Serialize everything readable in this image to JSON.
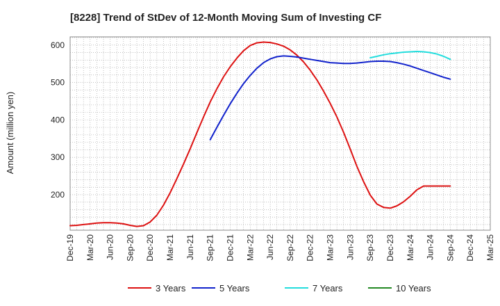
{
  "chart_data": {
    "type": "line",
    "title": "[8228]  Trend of StDev of 12-Month Moving Sum of Investing CF",
    "xlabel": "",
    "ylabel": "Amount (million yen)",
    "x_ticks": [
      "Dec-19",
      "Mar-20",
      "Jun-20",
      "Sep-20",
      "Dec-20",
      "Mar-21",
      "Jun-21",
      "Sep-21",
      "Dec-21",
      "Mar-22",
      "Jun-22",
      "Sep-22",
      "Dec-22",
      "Mar-23",
      "Jun-23",
      "Sep-23",
      "Dec-23",
      "Mar-24",
      "Jun-24",
      "Sep-24",
      "Dec-24",
      "Mar-25"
    ],
    "y_ticks": [
      200,
      300,
      400,
      500,
      600
    ],
    "ylim": [
      105,
      622
    ],
    "grid": true,
    "legend_position": "bottom",
    "series": [
      {
        "name": "3 Years",
        "color": "#dd1111",
        "x": [
          "Dec-19",
          "Jan-20",
          "Feb-20",
          "Mar-20",
          "Apr-20",
          "May-20",
          "Jun-20",
          "Jul-20",
          "Aug-20",
          "Sep-20",
          "Oct-20",
          "Nov-20",
          "Dec-20",
          "Jan-21",
          "Feb-21",
          "Mar-21",
          "Apr-21",
          "May-21",
          "Jun-21",
          "Jul-21",
          "Aug-21",
          "Sep-21",
          "Oct-21",
          "Nov-21",
          "Dec-21",
          "Jan-22",
          "Feb-22",
          "Mar-22",
          "Apr-22",
          "May-22",
          "Jun-22",
          "Jul-22",
          "Aug-22",
          "Sep-22",
          "Oct-22",
          "Nov-22",
          "Dec-22",
          "Jan-23",
          "Feb-23",
          "Mar-23",
          "Apr-23",
          "May-23",
          "Jun-23",
          "Jul-23",
          "Aug-23",
          "Sep-23",
          "Oct-23",
          "Nov-23",
          "Dec-23",
          "Jan-24",
          "Feb-24",
          "Mar-24",
          "Apr-24",
          "May-24",
          "Jun-24",
          "Jul-24",
          "Aug-24",
          "Sep-24"
        ],
        "values": [
          117,
          118,
          120,
          122,
          124,
          125,
          125,
          124,
          122,
          118,
          115,
          117,
          127,
          145,
          172,
          205,
          243,
          282,
          323,
          366,
          408,
          448,
          483,
          515,
          542,
          565,
          585,
          599,
          606,
          608,
          607,
          603,
          597,
          587,
          573,
          555,
          533,
          507,
          477,
          444,
          408,
          367,
          322,
          276,
          235,
          199,
          175,
          166,
          164,
          170,
          181,
          196,
          213,
          223,
          223,
          223,
          223,
          223
        ]
      },
      {
        "name": "5 Years",
        "color": "#1122cc",
        "x": [
          "Sep-21",
          "Oct-21",
          "Nov-21",
          "Dec-21",
          "Jan-22",
          "Feb-22",
          "Mar-22",
          "Apr-22",
          "May-22",
          "Jun-22",
          "Jul-22",
          "Aug-22",
          "Sep-22",
          "Oct-22",
          "Nov-22",
          "Dec-22",
          "Jan-23",
          "Feb-23",
          "Mar-23",
          "Apr-23",
          "May-23",
          "Jun-23",
          "Jul-23",
          "Aug-23",
          "Sep-23",
          "Oct-23",
          "Nov-23",
          "Dec-23",
          "Jan-24",
          "Feb-24",
          "Mar-24",
          "Apr-24",
          "May-24",
          "Jun-24",
          "Jul-24",
          "Aug-24",
          "Sep-24"
        ],
        "values": [
          347,
          380,
          412,
          443,
          471,
          497,
          519,
          538,
          553,
          563,
          569,
          571,
          570,
          568,
          565,
          562,
          559,
          556,
          553,
          552,
          551,
          551,
          552,
          554,
          556,
          557,
          557,
          556,
          553,
          549,
          544,
          538,
          532,
          526,
          520,
          514,
          509
        ]
      },
      {
        "name": "7 Years",
        "color": "#22dddd",
        "x": [
          "Sep-23",
          "Oct-23",
          "Nov-23",
          "Dec-23",
          "Jan-24",
          "Feb-24",
          "Mar-24",
          "Apr-24",
          "May-24",
          "Jun-24",
          "Jul-24",
          "Aug-24",
          "Sep-24"
        ],
        "values": [
          566,
          570,
          574,
          577,
          579,
          581,
          582,
          583,
          582,
          580,
          576,
          570,
          562
        ]
      },
      {
        "name": "10 Years",
        "color": "#228822",
        "x": [],
        "values": []
      }
    ]
  }
}
